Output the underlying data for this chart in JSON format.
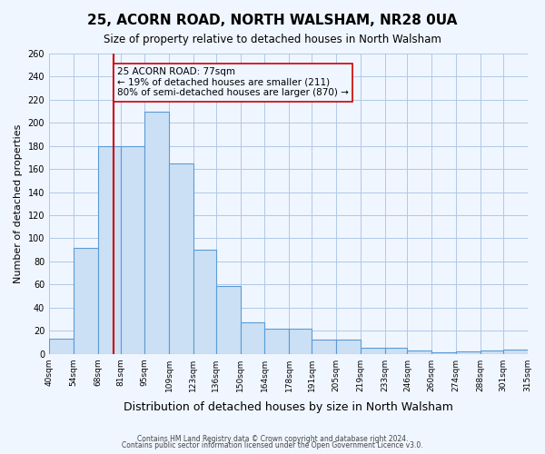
{
  "title": "25, ACORN ROAD, NORTH WALSHAM, NR28 0UA",
  "subtitle": "Size of property relative to detached houses in North Walsham",
  "xlabel": "Distribution of detached houses by size in North Walsham",
  "ylabel": "Number of detached properties",
  "bin_labels": [
    "40sqm",
    "54sqm",
    "68sqm",
    "81sqm",
    "95sqm",
    "109sqm",
    "123sqm",
    "136sqm",
    "150sqm",
    "164sqm",
    "178sqm",
    "191sqm",
    "205sqm",
    "219sqm",
    "233sqm",
    "246sqm",
    "260sqm",
    "274sqm",
    "288sqm",
    "301sqm",
    "315sqm"
  ],
  "bin_edges": [
    40,
    54,
    68,
    81,
    95,
    109,
    123,
    136,
    150,
    164,
    178,
    191,
    205,
    219,
    233,
    246,
    260,
    274,
    288,
    301,
    315
  ],
  "bar_heights": [
    13,
    92,
    180,
    180,
    210,
    165,
    90,
    59,
    27,
    22,
    22,
    12,
    12,
    5,
    5,
    3,
    1,
    2,
    3,
    4
  ],
  "bar_color": "#cce0f5",
  "bar_edgecolor": "#5b9bd5",
  "vline_x": 77,
  "vline_color": "#cc0000",
  "annotation_title": "25 ACORN ROAD: 77sqm",
  "annotation_line1": "← 19% of detached houses are smaller (211)",
  "annotation_line2": "80% of semi-detached houses are larger (870) →",
  "annotation_box_edgecolor": "#cc0000",
  "ylim": [
    0,
    260
  ],
  "yticks": [
    0,
    20,
    40,
    60,
    80,
    100,
    120,
    140,
    160,
    180,
    200,
    220,
    240,
    260
  ],
  "footer1": "Contains HM Land Registry data © Crown copyright and database right 2024.",
  "footer2": "Contains public sector information licensed under the Open Government Licence v3.0.",
  "background_color": "#f0f6ff",
  "grid_color": "#b0c8e8"
}
